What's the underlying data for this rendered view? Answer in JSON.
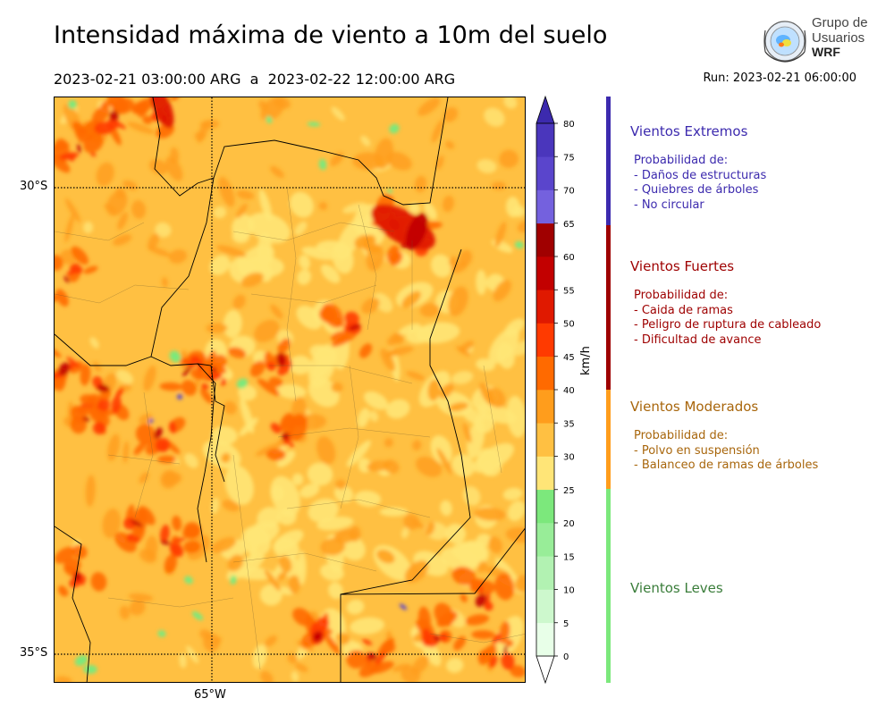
{
  "header": {
    "title": "Intensidad máxima de viento a 10m del suelo",
    "period": "2023-02-21 03:00:00 ARG  a  2023-02-22 12:00:00 ARG",
    "run": "Run: 2023-02-21 06:00:00"
  },
  "logo": {
    "line1": "Grupo de",
    "line2": "Usuarios",
    "line3": "WRF"
  },
  "map": {
    "lat_labels": [
      "30°S",
      "35°S"
    ],
    "lon_labels": [
      "65°W"
    ]
  },
  "colorbar": {
    "unit": "km/h",
    "ticks": [
      "0",
      "5",
      "10",
      "15",
      "20",
      "25",
      "30",
      "35",
      "40",
      "45",
      "50",
      "55",
      "60",
      "65",
      "70",
      "75",
      "80"
    ],
    "colors": [
      "#e8ffe8",
      "#cdf8cd",
      "#b2f2b2",
      "#98ed98",
      "#7ce87c",
      "#ffe577",
      "#ffc042",
      "#ff9d1c",
      "#ff6a00",
      "#ff3a00",
      "#e01900",
      "#c20000",
      "#a00000",
      "#7461de",
      "#5a45cc",
      "#4a36bc"
    ],
    "under_color": "#ffffff",
    "over_color": "#3c2aae"
  },
  "categories": [
    {
      "title": "Vientos Extremos",
      "color": "#3c2aae",
      "desc_title": "Probabilidad de:",
      "items": [
        "- Daños de estructuras",
        "- Quiebres de árboles",
        "- No circular"
      ]
    },
    {
      "title": "Vientos Fuertes",
      "color": "#9e0000",
      "desc_title": "Probabilidad de:",
      "items": [
        "- Caida de ramas",
        "- Peligro de ruptura de cableado",
        "- Dificultad de avance"
      ]
    },
    {
      "title": "Vientos Moderados",
      "color": "#a8660c",
      "bar_color": "#ff9d1c",
      "desc_title": "Probabilidad de:",
      "items": [
        "- Polvo en suspensión",
        "- Balanceo de ramas de árboles"
      ]
    },
    {
      "title": "Vientos Leves",
      "color": "#3a7d3a",
      "bar_color": "#7ce87c"
    }
  ]
}
